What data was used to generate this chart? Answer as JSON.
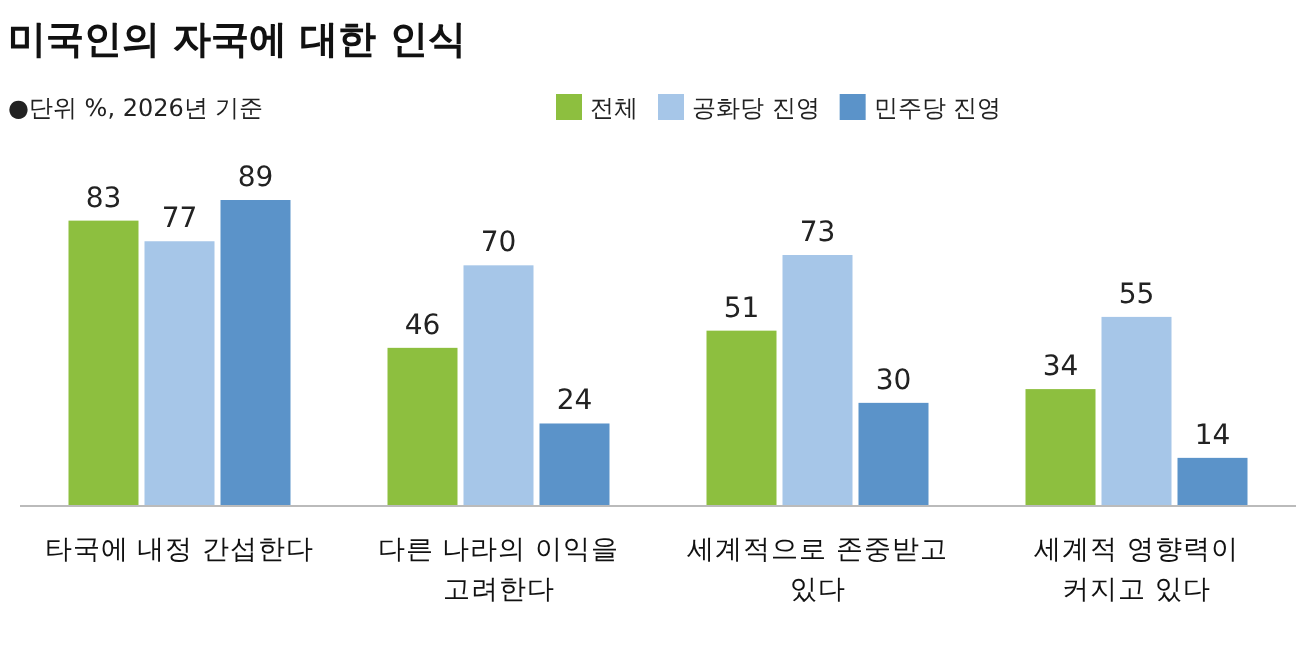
{
  "chart_data": {
    "type": "bar",
    "title": "미국인의 자국에 대한 인식",
    "annotations": [
      "●단위 %, 2026년 기준"
    ],
    "categories": [
      "타국에 내정 간섭한다",
      "다른 나라의 이익을 고려한다",
      "세계적으로 존중받고 있다",
      "세계적 영향력이 커지고 있다"
    ],
    "series": [
      {
        "name": "전체",
        "color": "#8dbf3f",
        "values": [
          83,
          46,
          51,
          34
        ]
      },
      {
        "name": "공화당 진영",
        "color": "#a6c6e8",
        "values": [
          77,
          70,
          73,
          55
        ]
      },
      {
        "name": "민주당 진영",
        "color": "#5b93c9",
        "values": [
          89,
          24,
          30,
          14
        ]
      }
    ],
    "data_labels": true,
    "legend": "top"
  }
}
